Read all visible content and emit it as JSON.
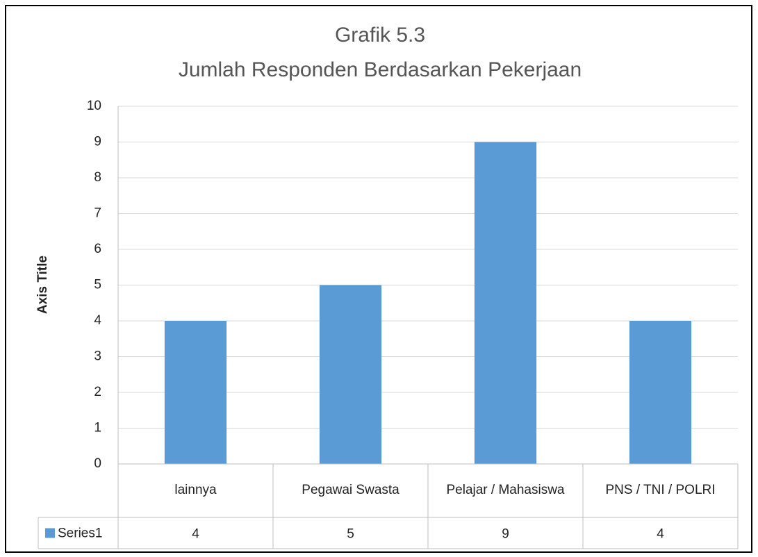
{
  "chart_data": {
    "type": "bar",
    "title": "Grafik 5.3",
    "subtitle": "Jumlah Responden Berdasarkan Pekerjaan",
    "y_axis_label": "Axis Title",
    "categories": [
      "lainnya",
      "Pegawai Swasta",
      "Pelajar / Mahasiswa",
      "PNS / TNI / POLRI"
    ],
    "series": [
      {
        "name": "Series1",
        "color": "#5b9bd5",
        "values": [
          4,
          5,
          9,
          4
        ]
      }
    ],
    "ylim": [
      0,
      10
    ],
    "yticks": [
      0,
      1,
      2,
      3,
      4,
      5,
      6,
      7,
      8,
      9,
      10
    ],
    "grid": true,
    "data_table": true
  }
}
